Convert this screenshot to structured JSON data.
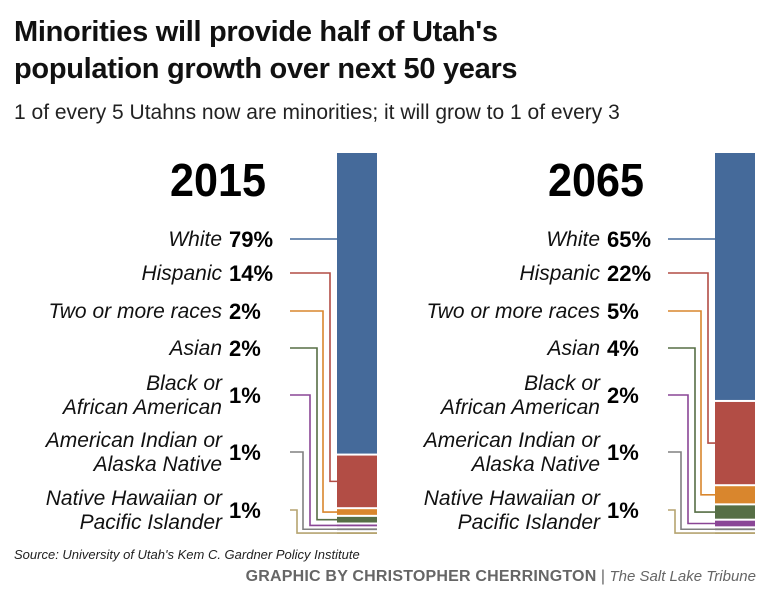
{
  "title_line1": "Minorities will provide half of Utah's",
  "title_line2": "population growth over next 50 years",
  "subtitle": "1 of every 5 Utahns now are minorities; it will grow to 1 of every 3",
  "source": "Source: University of Utah's Kem C. Gardner Policy Institute",
  "credit": "GRAPHIC BY CHRISTOPHER CHERRINGTON",
  "separator": "|",
  "publisher": "The Salt Lake Tribune",
  "chart_data": [
    {
      "type": "bar",
      "stacked": true,
      "title": "2015",
      "unit": "%",
      "categories": [
        [
          "White"
        ],
        [
          "Hispanic"
        ],
        [
          "Two or more races"
        ],
        [
          "Asian"
        ],
        [
          "Black or",
          "African American"
        ],
        [
          "American Indian or",
          "Alaska Native"
        ],
        [
          "Native Hawaiian or",
          "Pacific Islander"
        ]
      ],
      "values": [
        79,
        14,
        2,
        2,
        1,
        1,
        1
      ],
      "ylim": [
        0,
        100
      ]
    },
    {
      "type": "bar",
      "stacked": true,
      "title": "2065",
      "unit": "%",
      "categories": [
        [
          "White"
        ],
        [
          "Hispanic"
        ],
        [
          "Two or more races"
        ],
        [
          "Asian"
        ],
        [
          "Black or",
          "African American"
        ],
        [
          "American Indian or",
          "Alaska Native"
        ],
        [
          "Native Hawaiian or",
          "Pacific Islander"
        ]
      ],
      "values": [
        65,
        22,
        5,
        4,
        2,
        1,
        1
      ],
      "ylim": [
        0,
        100
      ]
    }
  ],
  "colors": [
    "#456a9a",
    "#b24d45",
    "#d9862d",
    "#566e45",
    "#8a4696",
    "#808080",
    "#b5a470"
  ]
}
